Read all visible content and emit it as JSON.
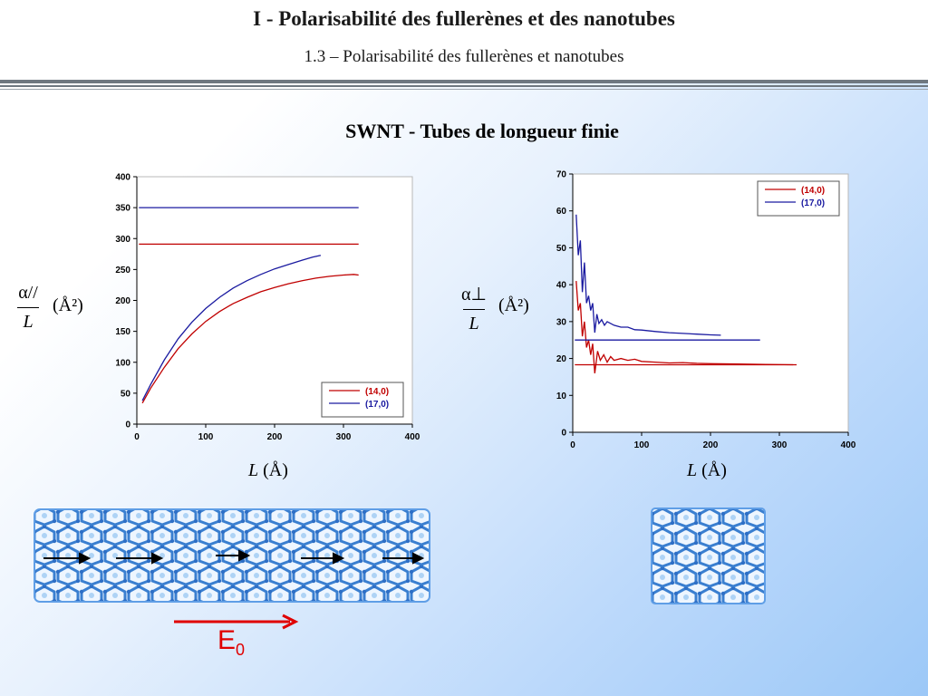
{
  "header": {
    "title": "I  - Polarisabilité des fullerènes et des nanotubes",
    "subtitle": "1.3 – Polarisabilité des fullerènes et nanotubes"
  },
  "section_title": "SWNT - Tubes de longueur finie",
  "left_axis_label": {
    "numerator": "α//",
    "denominator": "L",
    "unit": "(Å²)"
  },
  "right_axis_label": {
    "numerator": "α⊥",
    "denominator": "L",
    "unit": "(Å²)"
  },
  "x_axis_label_left": {
    "var": "L",
    "unit": "(Å)"
  },
  "x_axis_label_right": {
    "var": "L",
    "unit": "(Å)"
  },
  "field_label": {
    "symbol": "E",
    "subscript": "0"
  },
  "colors": {
    "red": "#c00000",
    "blue": "#1a1aa0"
  },
  "chart_data": [
    {
      "type": "line",
      "title": "",
      "xlabel": "L (Å)",
      "ylabel": "α// / L (Å²)",
      "xlim": [
        0,
        400
      ],
      "ylim": [
        0,
        400
      ],
      "xticks": [
        0,
        100,
        200,
        300,
        400
      ],
      "yticks": [
        0,
        50,
        100,
        150,
        200,
        250,
        300,
        350,
        400
      ],
      "grid": false,
      "legend": "bottom-right",
      "series": [
        {
          "name": "(14,0)",
          "color": "#c00000",
          "x": [
            8,
            20,
            40,
            60,
            80,
            100,
            120,
            140,
            160,
            180,
            200,
            220,
            240,
            260,
            280,
            300,
            315,
            322
          ],
          "y": [
            34,
            58,
            92,
            122,
            146,
            166,
            182,
            195,
            205,
            214,
            221,
            227,
            232,
            236,
            239,
            241,
            242,
            241
          ]
        },
        {
          "name": "(17,0)",
          "color": "#1a1aa0",
          "x": [
            8,
            20,
            40,
            60,
            80,
            100,
            120,
            140,
            160,
            180,
            200,
            220,
            240,
            255,
            267
          ],
          "y": [
            38,
            64,
            104,
            138,
            165,
            187,
            205,
            220,
            232,
            242,
            251,
            258,
            265,
            270,
            273
          ]
        },
        {
          "name": "",
          "color": "#c00000",
          "x": [
            3,
            322
          ],
          "y": [
            291,
            291
          ]
        },
        {
          "name": "",
          "color": "#1a1aa0",
          "x": [
            3,
            322
          ],
          "y": [
            350,
            350
          ]
        }
      ]
    },
    {
      "type": "line",
      "title": "",
      "xlabel": "L (Å)",
      "ylabel": "α⊥ / L (Å²)",
      "xlim": [
        0,
        400
      ],
      "ylim": [
        0,
        70
      ],
      "xticks": [
        0,
        100,
        200,
        300,
        400
      ],
      "yticks": [
        0,
        10,
        20,
        30,
        40,
        50,
        60,
        70
      ],
      "grid": false,
      "legend": "top-right",
      "series": [
        {
          "name": "(14,0)",
          "color": "#c00000",
          "x": [
            5,
            8,
            11,
            14,
            17,
            20,
            23,
            26,
            29,
            32,
            36,
            40,
            45,
            50,
            55,
            60,
            70,
            80,
            90,
            100,
            120,
            140,
            160,
            180,
            200,
            240,
            280,
            320
          ],
          "y": [
            41,
            33,
            35,
            26,
            30,
            23,
            25,
            21,
            24,
            16,
            22,
            19.5,
            21,
            19,
            20.5,
            19.5,
            20,
            19.5,
            19.8,
            19.2,
            19,
            18.8,
            18.9,
            18.7,
            18.6,
            18.5,
            18.4,
            18.3
          ]
        },
        {
          "name": "(17,0)",
          "color": "#1a1aa0",
          "x": [
            5,
            8,
            11,
            14,
            17,
            20,
            23,
            26,
            29,
            32,
            35,
            38,
            42,
            46,
            50,
            60,
            70,
            80,
            90,
            100,
            120,
            140,
            160,
            180,
            200,
            215
          ],
          "y": [
            59,
            48,
            52,
            38,
            46,
            35,
            37,
            33,
            35,
            27,
            32,
            29.5,
            30.5,
            29,
            30,
            29,
            28.5,
            28.5,
            27.8,
            27.7,
            27.3,
            27,
            26.8,
            26.6,
            26.4,
            26.3
          ]
        },
        {
          "name": "",
          "color": "#c00000",
          "x": [
            3,
            325
          ],
          "y": [
            18.3,
            18.3
          ]
        },
        {
          "name": "",
          "color": "#1a1aa0",
          "x": [
            3,
            272
          ],
          "y": [
            25,
            25
          ]
        }
      ]
    }
  ]
}
